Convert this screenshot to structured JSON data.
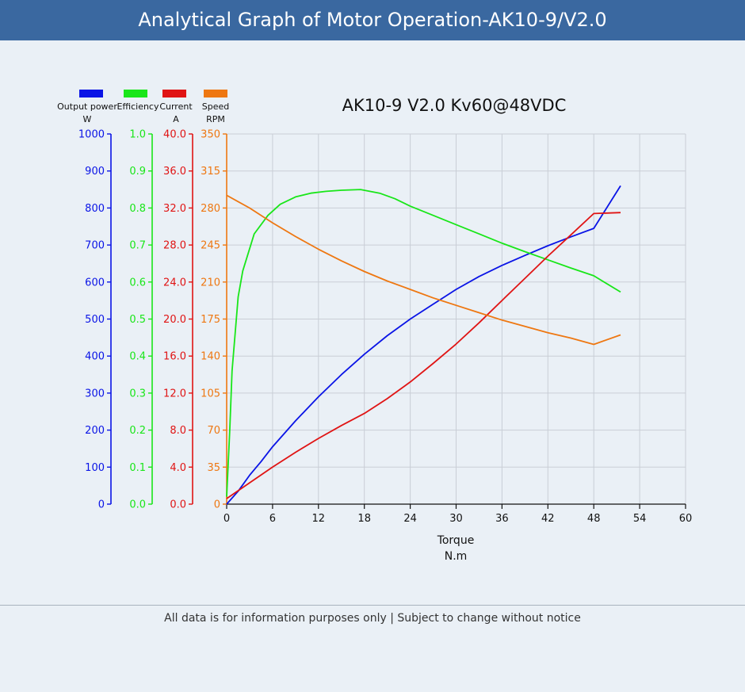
{
  "header": {
    "title": "Analytical Graph of Motor Operation-AK10-9/V2.0"
  },
  "footer": {
    "note": "All data is for information purposes only | Subject to change without notice"
  },
  "colors": {
    "header_bg": "#3a68a0",
    "page_bg": "#eaf0f6",
    "output_power": "#0a14e6",
    "efficiency": "#19e619",
    "current": "#e01414",
    "speed": "#ee7711"
  },
  "chart_data": {
    "type": "line",
    "title": "AK10-9 V2.0 Kv60@48VDC",
    "xlabel": "Torque",
    "xunit": "N.m",
    "xlim": [
      0,
      60
    ],
    "x_ticks": [
      "0",
      "6",
      "12",
      "18",
      "24",
      "30",
      "36",
      "42",
      "48",
      "54",
      "60"
    ],
    "grid": true,
    "legend_position": "top-left",
    "series": [
      {
        "key": "output_power",
        "name": "Output power",
        "unit": "W",
        "color": "#0a14e6",
        "ylim": [
          0,
          1000
        ],
        "y_ticks": [
          "0",
          "100",
          "200",
          "300",
          "400",
          "500",
          "600",
          "700",
          "800",
          "900",
          "1000"
        ],
        "points": [
          [
            0,
            0
          ],
          [
            1.5,
            35
          ],
          [
            3,
            78
          ],
          [
            4.5,
            115
          ],
          [
            6,
            155
          ],
          [
            9,
            225
          ],
          [
            12,
            290
          ],
          [
            15,
            350
          ],
          [
            18,
            405
          ],
          [
            21,
            455
          ],
          [
            24,
            500
          ],
          [
            27,
            540
          ],
          [
            30,
            580
          ],
          [
            33,
            615
          ],
          [
            36,
            645
          ],
          [
            39,
            672
          ],
          [
            42,
            698
          ],
          [
            45,
            722
          ],
          [
            48,
            745
          ],
          [
            51.5,
            860
          ]
        ]
      },
      {
        "key": "efficiency",
        "name": "Efficiency",
        "unit": "",
        "color": "#19e619",
        "ylim": [
          0,
          1
        ],
        "y_ticks": [
          "0.0",
          "0.1",
          "0.2",
          "0.3",
          "0.4",
          "0.5",
          "0.6",
          "0.7",
          "0.8",
          "0.9",
          "1.0"
        ],
        "points": [
          [
            0,
            0.02
          ],
          [
            0.4,
            0.2
          ],
          [
            0.7,
            0.36
          ],
          [
            1.5,
            0.56
          ],
          [
            2.1,
            0.63
          ],
          [
            3.6,
            0.73
          ],
          [
            5.4,
            0.78
          ],
          [
            7,
            0.81
          ],
          [
            9,
            0.83
          ],
          [
            11,
            0.84
          ],
          [
            13,
            0.845
          ],
          [
            15,
            0.848
          ],
          [
            17.5,
            0.85
          ],
          [
            20,
            0.84
          ],
          [
            22,
            0.825
          ],
          [
            24,
            0.805
          ],
          [
            27,
            0.78
          ],
          [
            30,
            0.755
          ],
          [
            33,
            0.73
          ],
          [
            36,
            0.705
          ],
          [
            39,
            0.682
          ],
          [
            42,
            0.66
          ],
          [
            45,
            0.638
          ],
          [
            48,
            0.617
          ],
          [
            51.5,
            0.573
          ]
        ]
      },
      {
        "key": "current",
        "name": "Current",
        "unit": "A",
        "color": "#e01414",
        "ylim": [
          0,
          40
        ],
        "y_ticks": [
          "0.0",
          "4.0",
          "8.0",
          "12.0",
          "16.0",
          "20.0",
          "24.0",
          "28.0",
          "32.0",
          "36.0",
          "40.0"
        ],
        "points": [
          [
            0,
            0.6
          ],
          [
            3,
            2.3
          ],
          [
            6,
            4
          ],
          [
            9,
            5.6
          ],
          [
            12,
            7.1
          ],
          [
            15,
            8.5
          ],
          [
            18,
            9.8
          ],
          [
            21,
            11.4
          ],
          [
            24,
            13.2
          ],
          [
            27,
            15.2
          ],
          [
            30,
            17.3
          ],
          [
            33,
            19.6
          ],
          [
            36,
            22
          ],
          [
            39,
            24.4
          ],
          [
            42,
            26.8
          ],
          [
            45,
            29.1
          ],
          [
            48,
            31.4
          ],
          [
            51.5,
            31.5
          ]
        ]
      },
      {
        "key": "speed",
        "name": "Speed",
        "unit": "RPM",
        "color": "#ee7711",
        "ylim": [
          0,
          350
        ],
        "y_ticks": [
          "0",
          "35",
          "70",
          "105",
          "140",
          "175",
          "210",
          "245",
          "280",
          "315",
          "350"
        ],
        "points": [
          [
            0,
            292
          ],
          [
            3,
            280
          ],
          [
            6,
            266
          ],
          [
            9,
            253
          ],
          [
            12,
            241
          ],
          [
            15,
            230
          ],
          [
            18,
            220
          ],
          [
            21,
            211
          ],
          [
            24,
            203
          ],
          [
            27,
            195
          ],
          [
            30,
            188
          ],
          [
            33,
            181
          ],
          [
            36,
            174
          ],
          [
            39,
            168
          ],
          [
            42,
            162
          ],
          [
            45,
            157
          ],
          [
            48,
            151
          ],
          [
            51.5,
            160
          ]
        ]
      }
    ]
  }
}
